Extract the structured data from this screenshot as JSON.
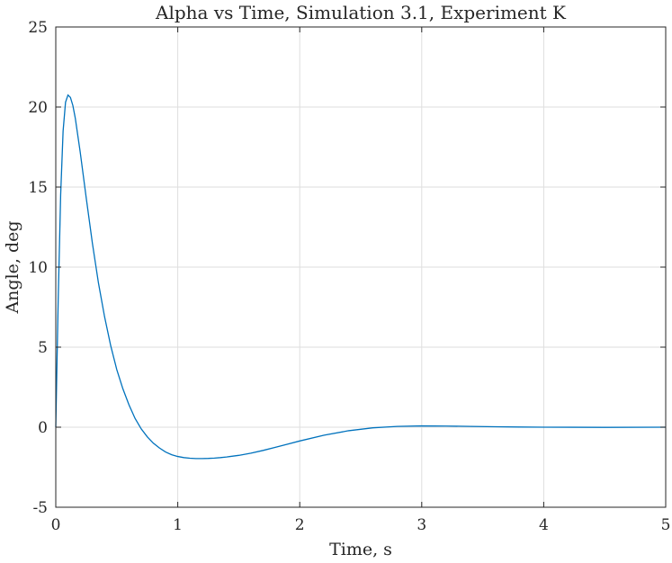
{
  "chart_data": {
    "type": "line",
    "title": "Alpha vs Time, Simulation 3.1, Experiment K",
    "xlabel": "Time, s",
    "ylabel": "Angle, deg",
    "xlim": [
      0,
      5
    ],
    "ylim": [
      -5,
      25
    ],
    "x_ticks": [
      0,
      1,
      2,
      3,
      4,
      5
    ],
    "y_ticks": [
      -5,
      0,
      5,
      10,
      15,
      20,
      25
    ],
    "grid": true,
    "series": [
      {
        "color": "#0072BD",
        "x": [
          0,
          0.02,
          0.04,
          0.06,
          0.08,
          0.1,
          0.12,
          0.14,
          0.16,
          0.2,
          0.25,
          0.3,
          0.35,
          0.4,
          0.45,
          0.5,
          0.55,
          0.6,
          0.65,
          0.7,
          0.75,
          0.8,
          0.85,
          0.9,
          0.95,
          1.0,
          1.05,
          1.1,
          1.15,
          1.2,
          1.25,
          1.3,
          1.35,
          1.4,
          1.5,
          1.6,
          1.7,
          1.8,
          1.9,
          2.0,
          2.2,
          2.4,
          2.6,
          2.8,
          3.0,
          3.2,
          3.4,
          3.6,
          3.8,
          4.0,
          4.5,
          5.0
        ],
        "y": [
          0,
          8.0,
          14.5,
          18.5,
          20.3,
          20.75,
          20.6,
          20.1,
          19.3,
          17.2,
          14.3,
          11.5,
          9.0,
          6.9,
          5.1,
          3.6,
          2.4,
          1.4,
          0.55,
          -0.1,
          -0.6,
          -1.0,
          -1.3,
          -1.55,
          -1.72,
          -1.83,
          -1.9,
          -1.94,
          -1.96,
          -1.96,
          -1.95,
          -1.93,
          -1.9,
          -1.86,
          -1.76,
          -1.62,
          -1.45,
          -1.26,
          -1.06,
          -0.86,
          -0.5,
          -0.22,
          -0.04,
          0.05,
          0.08,
          0.07,
          0.05,
          0.03,
          0.01,
          0.0,
          -0.01,
          0.0
        ]
      }
    ]
  }
}
